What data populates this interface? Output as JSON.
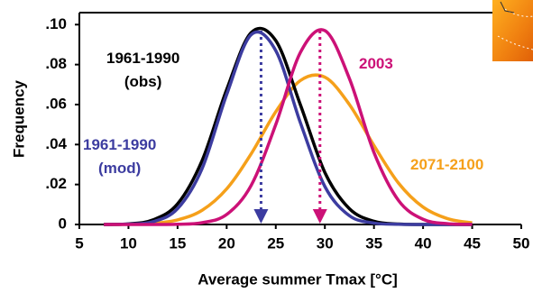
{
  "chart_data": {
    "type": "line",
    "xlabel": "Average summer Tmax [°C]",
    "ylabel": "Frequency",
    "x": [
      7.5,
      10,
      12.5,
      15,
      17.5,
      20,
      22.5,
      25,
      27.5,
      30,
      32.5,
      35,
      37.5,
      40,
      42.5,
      45
    ],
    "series": [
      {
        "name": "1961-1990\n(obs)",
        "color": "#000000",
        "values": [
          0,
          0.0003,
          0.0023,
          0.0103,
          0.032,
          0.0675,
          0.096,
          0.092,
          0.06,
          0.026,
          0.0079,
          0.0016,
          0.0002,
          0,
          0,
          0
        ]
      },
      {
        "name": "1961-1990\n(mod)",
        "color": "#3c3ca0",
        "mean": 23.5,
        "values": [
          0,
          0.0002,
          0.0014,
          0.0079,
          0.028,
          0.065,
          0.095,
          0.087,
          0.051,
          0.019,
          0.0044,
          0.0007,
          0.0001,
          0,
          0,
          0
        ]
      },
      {
        "name": "2003",
        "color": "#cc1177",
        "mean": 29.5,
        "values": [
          0,
          0,
          0,
          0.0001,
          0.0009,
          0.005,
          0.0196,
          0.05,
          0.086,
          0.097,
          0.073,
          0.036,
          0.012,
          0.0026,
          0.0004,
          0
        ]
      },
      {
        "name": "2071-2100",
        "color": "#f5a01a",
        "values": [
          0,
          0.0001,
          0.0006,
          0.0023,
          0.0071,
          0.0178,
          0.0354,
          0.0564,
          0.072,
          0.0737,
          0.06,
          0.0395,
          0.0207,
          0.0087,
          0.0029,
          0.0008
        ]
      }
    ],
    "xlim": [
      5,
      50
    ],
    "xticks": [
      5,
      10,
      15,
      20,
      25,
      30,
      35,
      40,
      45,
      50
    ],
    "ylim": [
      0,
      0.106
    ],
    "yticks": [
      0,
      {
        "value": 0.02,
        "label": ".02"
      },
      {
        "value": 0.04,
        "label": ".04"
      },
      {
        "value": 0.06,
        "label": ".06"
      },
      {
        "value": 0.08,
        "label": ".08"
      },
      {
        "value": 0.1,
        "label": ".10"
      }
    ]
  }
}
